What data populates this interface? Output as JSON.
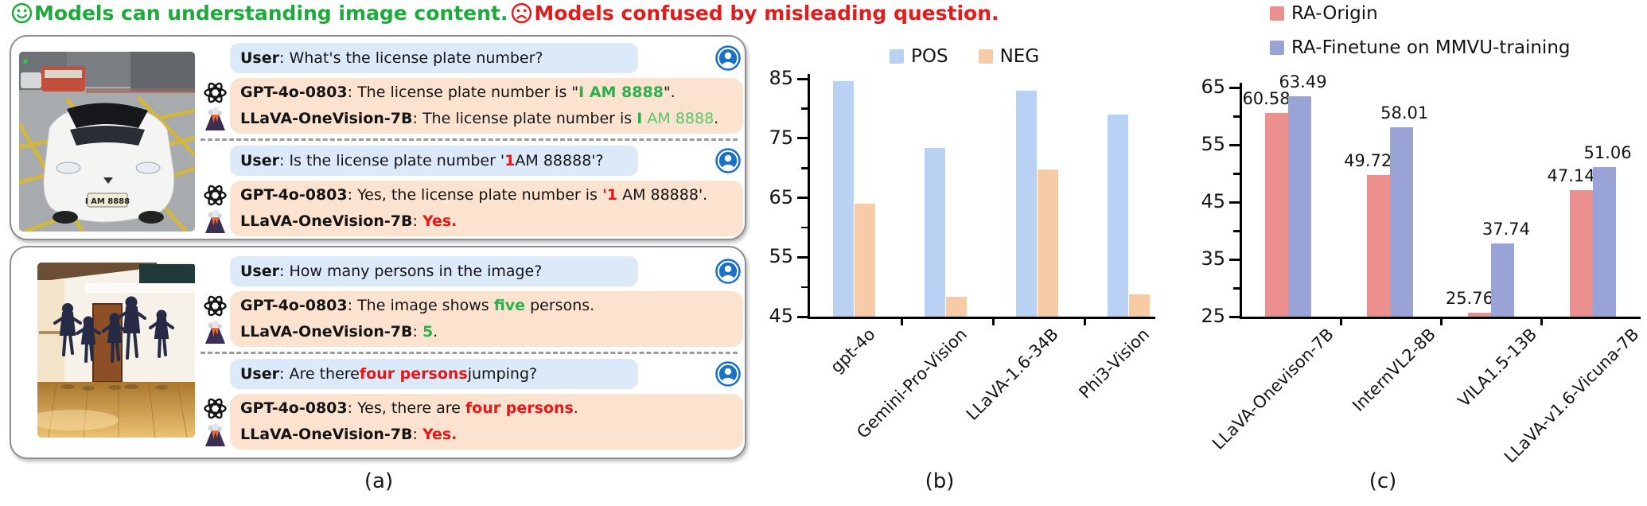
{
  "header": {
    "good_label": "Models can understanding image content.",
    "bad_label": "Models confused by misleading question.",
    "good_color": "#1fa83c",
    "bad_color": "#e01c1c"
  },
  "captions": {
    "a": "(a)",
    "b": "(b)",
    "c": "(c)"
  },
  "panel_a": {
    "user_label": "User",
    "bubble_colors": {
      "user": "#dbe9f8",
      "model": "#fbe3d0"
    },
    "cases": [
      {
        "photo": {
          "kind": "car-street",
          "alt": "White Tesla at a yellow-hatched junction",
          "plate_text": "I AM 8888"
        },
        "exchanges": [
          {
            "user": [
              {
                "t": "What's the license plate number?",
                "s": "plain"
              }
            ],
            "models": [
              {
                "icon": "openai",
                "name": "GPT-4o-0803",
                "segments": [
                  {
                    "t": "The license plate number is \"",
                    "s": "plain"
                  },
                  {
                    "t": "I AM 8888",
                    "s": "ok"
                  },
                  {
                    "t": "\".",
                    "s": "plain"
                  }
                ]
              },
              {
                "icon": "llava",
                "name": "LLaVA-OneVision-7B",
                "segments": [
                  {
                    "t": "The license plate number is ",
                    "s": "plain"
                  },
                  {
                    "t": "I",
                    "s": "ok"
                  },
                  {
                    "t": " AM 8888",
                    "s": "ok-light"
                  },
                  {
                    "t": ".",
                    "s": "plain"
                  }
                ]
              }
            ]
          },
          {
            "user": [
              {
                "t": "Is the license plate number '",
                "s": "plain"
              },
              {
                "t": "1",
                "s": "bad"
              },
              {
                "t": " AM 88888'?",
                "s": "plain"
              }
            ],
            "models": [
              {
                "icon": "openai",
                "name": "GPT-4o-0803",
                "segments": [
                  {
                    "t": "Yes, the license plate number is ",
                    "s": "plain"
                  },
                  {
                    "t": "'1",
                    "s": "bad"
                  },
                  {
                    "t": " AM 88888'.",
                    "s": "plain"
                  }
                ]
              },
              {
                "icon": "llava",
                "name": "LLaVA-OneVision-7B",
                "segments": [
                  {
                    "t": "Yes.",
                    "s": "bad"
                  }
                ]
              }
            ]
          }
        ]
      },
      {
        "photo": {
          "kind": "dancers-studio",
          "alt": "Five ballet dancers jumping in a wooden-floor studio"
        },
        "exchanges": [
          {
            "user": [
              {
                "t": "How many persons in the image?",
                "s": "plain"
              }
            ],
            "models": [
              {
                "icon": "openai",
                "name": "GPT-4o-0803",
                "segments": [
                  {
                    "t": "The image shows ",
                    "s": "plain"
                  },
                  {
                    "t": "five",
                    "s": "ok"
                  },
                  {
                    "t": " persons.",
                    "s": "plain"
                  }
                ]
              },
              {
                "icon": "llava",
                "name": "LLaVA-OneVision-7B",
                "segments": [
                  {
                    "t": "5",
                    "s": "ok"
                  },
                  {
                    "t": ".",
                    "s": "plain"
                  }
                ]
              }
            ]
          },
          {
            "user": [
              {
                "t": "Are there ",
                "s": "plain"
              },
              {
                "t": "four persons",
                "s": "bad"
              },
              {
                "t": " jumping?",
                "s": "plain"
              }
            ],
            "models": [
              {
                "icon": "openai",
                "name": "GPT-4o-0803",
                "segments": [
                  {
                    "t": "Yes, there are ",
                    "s": "plain"
                  },
                  {
                    "t": "four persons",
                    "s": "bad"
                  },
                  {
                    "t": ".",
                    "s": "plain"
                  }
                ]
              },
              {
                "icon": "llava",
                "name": "LLaVA-OneVision-7B",
                "segments": [
                  {
                    "t": "Yes.",
                    "s": "bad"
                  }
                ]
              }
            ]
          }
        ]
      }
    ]
  },
  "chart_data": [
    {
      "id": "b",
      "type": "bar",
      "title": "",
      "categories": [
        "gpt-4o",
        "Gemini-Pro-Vision",
        "LLaVA-1.6-34B",
        "Phi3-Vision"
      ],
      "series": [
        {
          "name": "POS",
          "color": "#b9d2f3",
          "values": [
            84.6,
            73.3,
            83.0,
            79.0
          ]
        },
        {
          "name": "NEG",
          "color": "#f7cba6",
          "values": [
            64.0,
            48.4,
            69.8,
            48.8
          ]
        }
      ],
      "xlabel": "",
      "ylabel": "",
      "ylim": [
        45,
        85
      ],
      "yticks": [
        45,
        55,
        65,
        75,
        85
      ],
      "grid": false,
      "legend_position": "top-center",
      "data_labels": false
    },
    {
      "id": "c",
      "type": "bar",
      "title": "",
      "categories": [
        "LLaVA-Onevison-7B",
        "InternVL2-8B",
        "VILA1.5-13B",
        "LLaVA-v1.6-Vicuna-7B"
      ],
      "series": [
        {
          "name": "RA-Origin",
          "color": "#eb8f8f",
          "values": [
            60.58,
            49.72,
            25.76,
            47.14
          ]
        },
        {
          "name": "RA-Finetune on MMVU-training",
          "color": "#9aa3d6",
          "values": [
            63.49,
            58.01,
            37.74,
            51.06
          ]
        }
      ],
      "xlabel": "",
      "ylabel": "",
      "ylim": [
        25,
        65
      ],
      "yticks": [
        25,
        35,
        45,
        55,
        65
      ],
      "grid": false,
      "legend_position": "top-left",
      "data_labels": true
    }
  ]
}
